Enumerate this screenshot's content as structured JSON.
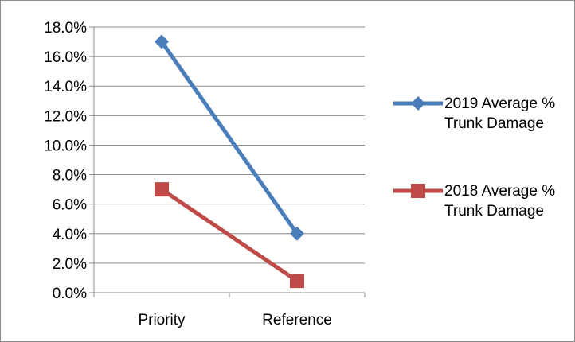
{
  "chart_data": {
    "type": "line",
    "categories": [
      "Priority",
      "Reference"
    ],
    "series": [
      {
        "name": "2019 Average % Trunk Damage",
        "values": [
          0.17,
          0.04
        ],
        "color": "#4a7ebb",
        "marker": "diamond"
      },
      {
        "name": "2018 Average % Trunk Damage",
        "values": [
          0.07,
          0.008
        ],
        "color": "#be4b48",
        "marker": "square"
      }
    ],
    "y_ticks": [
      "0.0%",
      "2.0%",
      "4.0%",
      "6.0%",
      "8.0%",
      "10.0%",
      "12.0%",
      "14.0%",
      "16.0%",
      "18.0%"
    ],
    "ylim": [
      0,
      0.18
    ],
    "y_step": 0.02,
    "grid": true,
    "legend_position": "right"
  }
}
